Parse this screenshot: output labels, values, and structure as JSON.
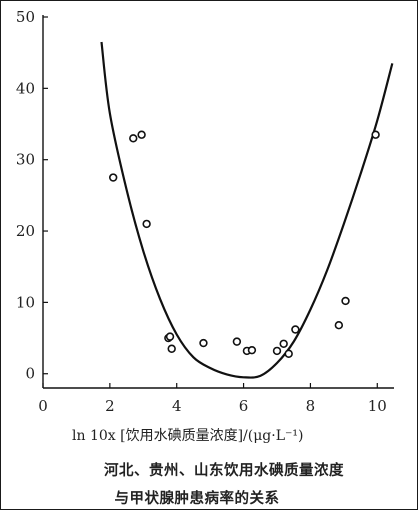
{
  "chart_data": {
    "type": "scatter",
    "title": "",
    "caption_line1": "河北、贵州、山东饮用水碘质量浓度",
    "caption_line2": "与甲状腺肿患病率的关系",
    "xlabel": "ln 10x [饮用水碘质量浓度]/(μg·L⁻¹)",
    "ylabel": "",
    "xlim": [
      0,
      10.5
    ],
    "ylim": [
      -2,
      50
    ],
    "xticks": [
      0,
      2,
      4,
      6,
      8,
      10
    ],
    "yticks": [
      0,
      10,
      20,
      30,
      40,
      50
    ],
    "grid": false,
    "series": [
      {
        "type": "scatter",
        "points": [
          [
            2.1,
            27.5
          ],
          [
            2.7,
            33.0
          ],
          [
            2.95,
            33.5
          ],
          [
            3.1,
            21.0
          ],
          [
            3.75,
            5.0
          ],
          [
            3.8,
            5.2
          ],
          [
            3.85,
            3.5
          ],
          [
            4.8,
            4.3
          ],
          [
            5.8,
            4.5
          ],
          [
            6.1,
            3.2
          ],
          [
            6.25,
            3.3
          ],
          [
            7.0,
            3.2
          ],
          [
            7.2,
            4.2
          ],
          [
            7.35,
            2.8
          ],
          [
            7.55,
            6.2
          ],
          [
            8.85,
            6.8
          ],
          [
            9.05,
            10.2
          ],
          [
            9.95,
            33.5
          ]
        ]
      },
      {
        "type": "line",
        "points": [
          [
            1.75,
            46.5
          ],
          [
            2.0,
            36.5
          ],
          [
            2.5,
            25.8
          ],
          [
            3.0,
            17.2
          ],
          [
            3.5,
            10.5
          ],
          [
            4.0,
            5.5
          ],
          [
            4.5,
            2.3
          ],
          [
            5.0,
            0.8
          ],
          [
            5.5,
            -0.1
          ],
          [
            6.0,
            -0.5
          ],
          [
            6.5,
            -0.3
          ],
          [
            7.0,
            1.5
          ],
          [
            7.5,
            4.5
          ],
          [
            8.0,
            9.0
          ],
          [
            8.5,
            14.5
          ],
          [
            9.0,
            21.0
          ],
          [
            9.5,
            28.0
          ],
          [
            10.0,
            35.5
          ],
          [
            10.45,
            43.5
          ]
        ]
      }
    ]
  }
}
